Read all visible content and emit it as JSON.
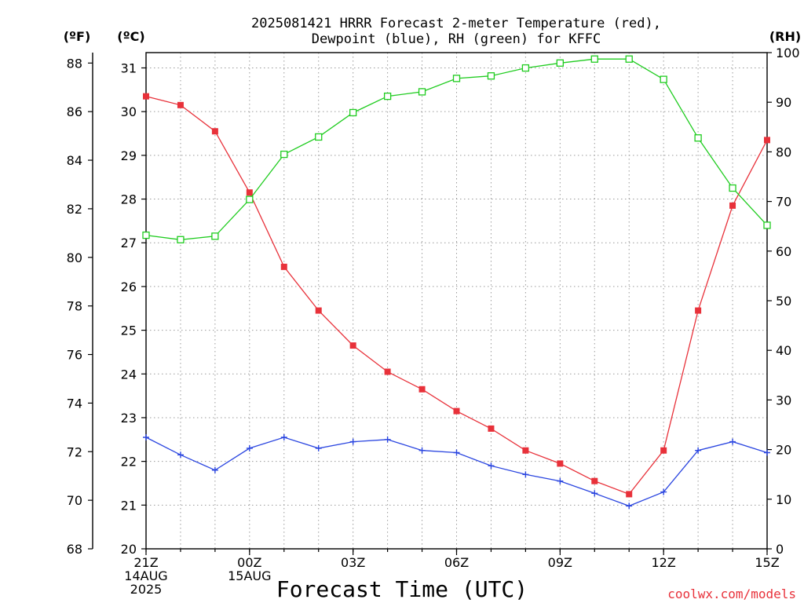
{
  "chart_data": {
    "type": "line",
    "title_line1": "2025081421 HRRR Forecast 2-meter Temperature (red),",
    "title_line2": "Dewpoint (blue), RH (green) for KFFC",
    "xlabel": "Forecast Time (UTC)",
    "watermark": "coolwx.com/models",
    "unit_left_f": "(ºF)",
    "unit_left_c": "(ºC)",
    "unit_right": "(RH)",
    "x_hours": [
      0,
      1,
      2,
      3,
      4,
      5,
      6,
      7,
      8,
      9,
      10,
      11,
      12,
      13,
      14,
      15,
      16,
      17,
      18
    ],
    "x_ticks": [
      {
        "hour": 0,
        "lines": [
          "21Z",
          "14AUG",
          "2025"
        ]
      },
      {
        "hour": 3,
        "lines": [
          "00Z",
          "15AUG"
        ]
      },
      {
        "hour": 6,
        "lines": [
          "03Z"
        ]
      },
      {
        "hour": 9,
        "lines": [
          "06Z"
        ]
      },
      {
        "hour": 12,
        "lines": [
          "09Z"
        ]
      },
      {
        "hour": 15,
        "lines": [
          "12Z"
        ]
      },
      {
        "hour": 18,
        "lines": [
          "15Z"
        ]
      }
    ],
    "y_celsius": {
      "range": [
        20,
        31.35
      ],
      "ticks": [
        20,
        21,
        22,
        23,
        24,
        25,
        26,
        27,
        28,
        29,
        30,
        31
      ]
    },
    "y_fahrenheit": {
      "ticks": [
        68,
        70,
        72,
        74,
        76,
        78,
        80,
        82,
        84,
        86,
        88
      ]
    },
    "y_rh": {
      "range": [
        0,
        100
      ],
      "ticks": [
        0,
        10,
        20,
        30,
        40,
        50,
        60,
        70,
        80,
        90,
        100
      ]
    },
    "grid": true,
    "series": [
      {
        "name": "Temperature",
        "color": "#e8313a",
        "marker": "filled-square",
        "axis": "celsius",
        "values": [
          30.35,
          30.15,
          29.55,
          28.15,
          26.45,
          25.45,
          24.65,
          24.05,
          23.65,
          23.15,
          22.75,
          22.25,
          21.95,
          21.55,
          21.25,
          22.25,
          25.45,
          27.85,
          29.35
        ]
      },
      {
        "name": "Dewpoint",
        "color": "#2b46e0",
        "marker": "plus",
        "axis": "celsius",
        "values": [
          22.55,
          22.15,
          21.8,
          22.3,
          22.55,
          22.3,
          22.45,
          22.5,
          22.25,
          22.2,
          21.9,
          21.7,
          21.55,
          21.27,
          20.98,
          21.3,
          22.25,
          22.45,
          22.2
        ]
      },
      {
        "name": "RH",
        "color": "#1fcc1f",
        "marker": "hollow-square",
        "axis": "rh",
        "values": [
          63.2,
          62.3,
          63.0,
          70.4,
          79.5,
          83.0,
          87.9,
          91.2,
          92.1,
          94.8,
          95.3,
          96.9,
          97.9,
          98.7,
          98.7,
          94.6,
          82.8,
          72.7,
          65.2
        ]
      }
    ]
  }
}
